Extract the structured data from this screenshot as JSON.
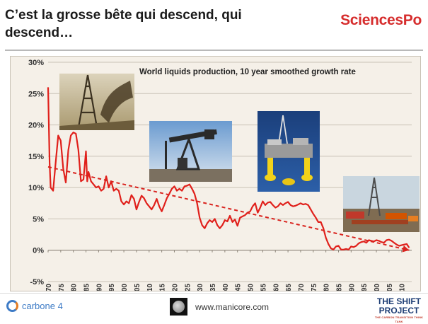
{
  "slide": {
    "title": "C’est la grosse bête qui descend, qui descend…",
    "brand": "SciencesPo"
  },
  "footer": {
    "org1": "carbone 4",
    "url": "www.manicore.com",
    "org2_line1": "THE SHIFT",
    "org2_line2": "PROJECT",
    "org2_tagline": "THE CARBON TRANSITION THINK TANK"
  },
  "colors": {
    "series": "#e0201b",
    "trend": "#d9231e",
    "brand": "#d62d2d",
    "chart_bg": "#f5f0e8"
  },
  "images": [
    {
      "icon": "oil-gusher-photo"
    },
    {
      "icon": "pumpjack-photo"
    },
    {
      "icon": "offshore-platform-photo"
    },
    {
      "icon": "drilling-rig-photo"
    }
  ],
  "chart_data": {
    "type": "line",
    "title": "World liquids production, 10 year smoothed growth rate",
    "xlabel": "",
    "ylabel": "",
    "xlim": [
      1870,
      2014
    ],
    "ylim": [
      -5,
      30
    ],
    "yticks": [
      "30%",
      "25%",
      "20%",
      "15%",
      "10%",
      "5%",
      "0%",
      "-5%"
    ],
    "xticks": [
      "1870",
      "1875",
      "1880",
      "1885",
      "1890",
      "1895",
      "1900",
      "1905",
      "1910",
      "1915",
      "1920",
      "1925",
      "1930",
      "1935",
      "1940",
      "1945",
      "1950",
      "1955",
      "1960",
      "1965",
      "1970",
      "1975",
      "1980",
      "1985",
      "1990",
      "1995",
      "2000",
      "2005",
      "2010"
    ],
    "grid": true,
    "series": [
      {
        "style": "solid",
        "points": [
          [
            1870,
            26
          ],
          [
            1870.6,
            14
          ],
          [
            1871,
            10
          ],
          [
            1872,
            9.5
          ],
          [
            1873,
            14
          ],
          [
            1874,
            18.3
          ],
          [
            1875,
            17.5
          ],
          [
            1876,
            13
          ],
          [
            1877,
            10.8
          ],
          [
            1878,
            16
          ],
          [
            1879,
            18.3
          ],
          [
            1880,
            18.8
          ],
          [
            1881,
            18.6
          ],
          [
            1882,
            16
          ],
          [
            1883,
            11
          ],
          [
            1884,
            11.3
          ],
          [
            1885,
            15.8
          ],
          [
            1885.5,
            11
          ],
          [
            1886,
            12.5
          ],
          [
            1887,
            11
          ],
          [
            1888,
            10.5
          ],
          [
            1889,
            10
          ],
          [
            1890,
            10.2
          ],
          [
            1891,
            9.5
          ],
          [
            1892,
            9.8
          ],
          [
            1893,
            11.8
          ],
          [
            1894,
            10
          ],
          [
            1895,
            11
          ],
          [
            1896,
            9.5
          ],
          [
            1897,
            9.8
          ],
          [
            1898,
            9.5
          ],
          [
            1899,
            7.8
          ],
          [
            1900,
            7.3
          ],
          [
            1901,
            7.8
          ],
          [
            1902,
            7.5
          ],
          [
            1903,
            8.8
          ],
          [
            1904,
            8.2
          ],
          [
            1905,
            6.5
          ],
          [
            1906,
            7.7
          ],
          [
            1907,
            8.7
          ],
          [
            1908,
            8.3
          ],
          [
            1909,
            7.5
          ],
          [
            1910,
            7.0
          ],
          [
            1911,
            6.5
          ],
          [
            1912,
            7.2
          ],
          [
            1913,
            8.2
          ],
          [
            1914,
            7.0
          ],
          [
            1915,
            6.2
          ],
          [
            1916,
            7.2
          ],
          [
            1917,
            8.3
          ],
          [
            1918,
            9.0
          ],
          [
            1919,
            9.8
          ],
          [
            1920,
            10.2
          ],
          [
            1921,
            9.5
          ],
          [
            1922,
            9.8
          ],
          [
            1923,
            9.5
          ],
          [
            1924,
            10.2
          ],
          [
            1925,
            10.3
          ],
          [
            1926,
            10.5
          ],
          [
            1927,
            9.8
          ],
          [
            1928,
            9.0
          ],
          [
            1929,
            7.5
          ],
          [
            1930,
            5.2
          ],
          [
            1931,
            4.0
          ],
          [
            1932,
            3.5
          ],
          [
            1933,
            4.3
          ],
          [
            1934,
            4.8
          ],
          [
            1935,
            4.5
          ],
          [
            1936,
            5.0
          ],
          [
            1937,
            4.0
          ],
          [
            1938,
            3.5
          ],
          [
            1939,
            4.0
          ],
          [
            1940,
            4.8
          ],
          [
            1941,
            4.6
          ],
          [
            1942,
            5.5
          ],
          [
            1943,
            4.5
          ],
          [
            1944,
            4.9
          ],
          [
            1945,
            3.9
          ],
          [
            1946,
            5.2
          ],
          [
            1947,
            5.4
          ],
          [
            1948,
            5.6
          ],
          [
            1949,
            6.0
          ],
          [
            1950,
            6.2
          ],
          [
            1951,
            7.0
          ],
          [
            1952,
            7.5
          ],
          [
            1953,
            6.0
          ],
          [
            1954,
            6.8
          ],
          [
            1955,
            7.8
          ],
          [
            1956,
            7.2
          ],
          [
            1957,
            7.6
          ],
          [
            1958,
            7.7
          ],
          [
            1959,
            7.2
          ],
          [
            1960,
            6.8
          ],
          [
            1961,
            7.0
          ],
          [
            1962,
            7.5
          ],
          [
            1963,
            7.2
          ],
          [
            1964,
            7.5
          ],
          [
            1965,
            7.7
          ],
          [
            1966,
            7.2
          ],
          [
            1967,
            7.0
          ],
          [
            1968,
            7.1
          ],
          [
            1969,
            7.3
          ],
          [
            1970,
            7.5
          ],
          [
            1971,
            7.3
          ],
          [
            1972,
            7.4
          ],
          [
            1973,
            7.2
          ],
          [
            1974,
            6.5
          ],
          [
            1975,
            5.8
          ],
          [
            1976,
            5.2
          ],
          [
            1977,
            4.5
          ],
          [
            1978,
            4.5
          ],
          [
            1979,
            3.5
          ],
          [
            1980,
            2.0
          ],
          [
            1981,
            1.0
          ],
          [
            1982,
            0.3
          ],
          [
            1983,
            0.1
          ],
          [
            1984,
            0.6
          ],
          [
            1985,
            0.7
          ],
          [
            1986,
            0.1
          ],
          [
            1987,
            0.1
          ],
          [
            1988,
            0.2
          ],
          [
            1989,
            0.1
          ],
          [
            1990,
            0.6
          ],
          [
            1991,
            0.5
          ],
          [
            1992,
            0.7
          ],
          [
            1993,
            1.1
          ],
          [
            1994,
            1.3
          ],
          [
            1995,
            1.4
          ],
          [
            1996,
            1.2
          ],
          [
            1997,
            1.6
          ],
          [
            1998,
            1.5
          ],
          [
            1999,
            1.4
          ],
          [
            2000,
            1.6
          ],
          [
            2001,
            1.5
          ],
          [
            2002,
            1.3
          ],
          [
            2003,
            1.2
          ],
          [
            2004,
            1.6
          ],
          [
            2005,
            1.7
          ],
          [
            2006,
            1.5
          ],
          [
            2007,
            1.2
          ],
          [
            2008,
            0.9
          ],
          [
            2009,
            0.7
          ],
          [
            2010,
            0.8
          ],
          [
            2011,
            0.9
          ],
          [
            2012,
            1.0
          ],
          [
            2013,
            0.4
          ]
        ]
      },
      {
        "style": "dashed",
        "points": [
          [
            1870,
            13.3
          ],
          [
            2013,
            0.0
          ]
        ]
      }
    ]
  }
}
